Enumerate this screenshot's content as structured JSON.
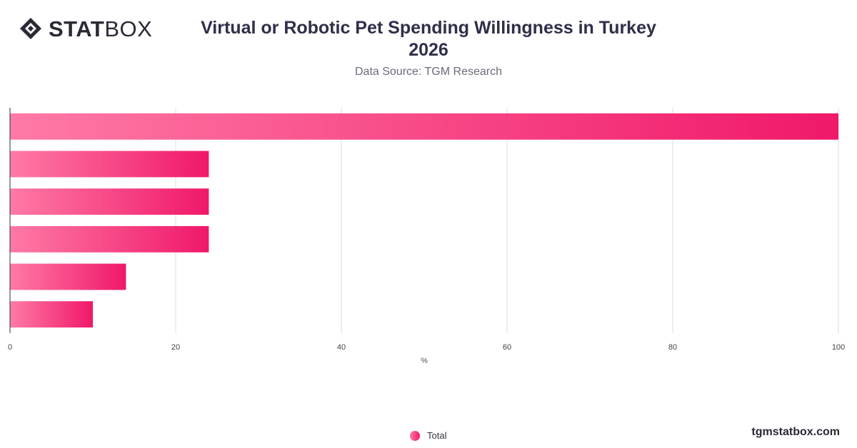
{
  "brand": {
    "logo_bold": "STAT",
    "logo_light": "BOX",
    "site": "tgmstatbox.com"
  },
  "header": {
    "title_line1": "Virtual or Robotic Pet Spending Willingness in Turkey",
    "title_line2": "2026",
    "subtitle": "Data Source: TGM Research"
  },
  "legend": {
    "label": "Total"
  },
  "colors": {
    "bar_start": "#ff7aa6",
    "bar_end": "#f0186a",
    "grid": "#dedede",
    "axis": "#333333"
  },
  "chart_data": {
    "type": "bar",
    "orientation": "horizontal",
    "categories": [
      "",
      "",
      "",
      "",
      "",
      ""
    ],
    "series": [
      {
        "name": "Total",
        "values": [
          100,
          24,
          24,
          24,
          14,
          10
        ]
      }
    ],
    "xlabel": "%",
    "ylabel": "",
    "xlim": [
      0,
      100
    ],
    "xticks": [
      0,
      20,
      40,
      60,
      80,
      100
    ],
    "grid": true,
    "legend_position": "bottom"
  }
}
